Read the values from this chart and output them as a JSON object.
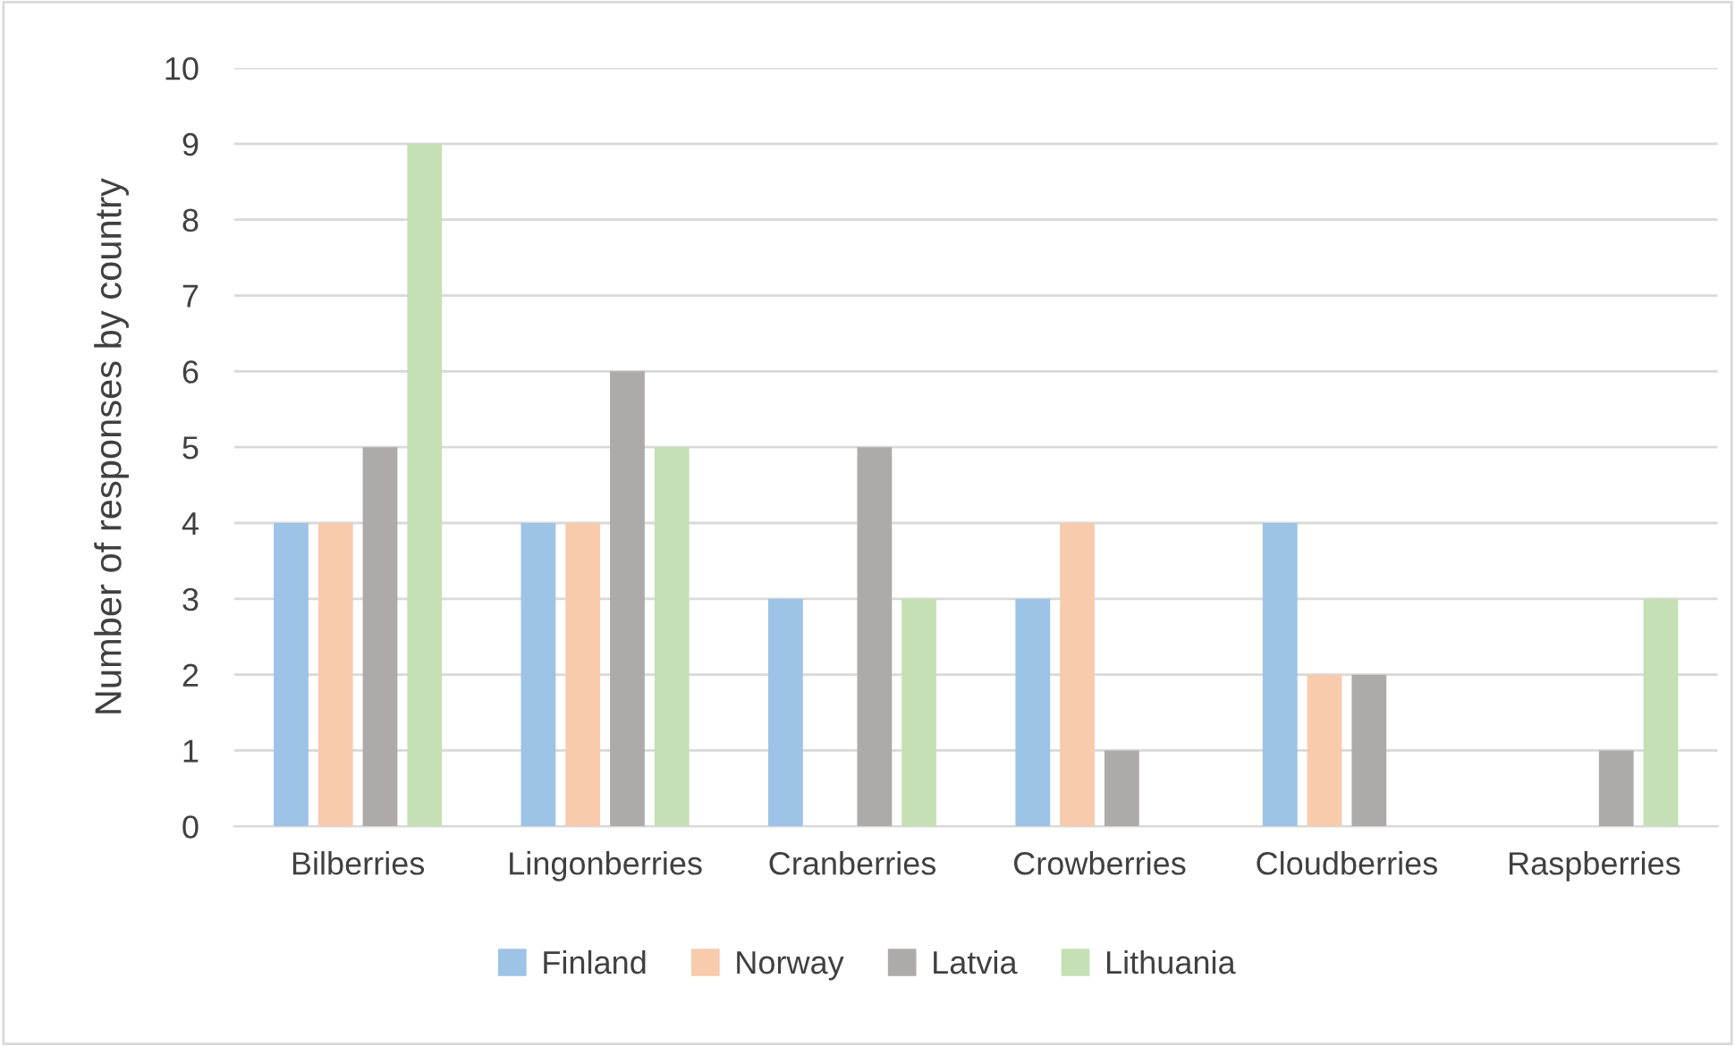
{
  "chart_data": {
    "type": "bar",
    "ylabel": "Number of responses by country",
    "categories": [
      "Bilberries",
      "Lingonberries",
      "Cranberries",
      "Crowberries",
      "Cloudberries",
      "Raspberries"
    ],
    "series": [
      {
        "name": "Finland",
        "color": "#9dc3e6",
        "values": [
          4,
          4,
          3,
          3,
          4,
          null
        ]
      },
      {
        "name": "Norway",
        "color": "#f8cbad",
        "values": [
          4,
          4,
          null,
          4,
          2,
          null
        ]
      },
      {
        "name": "Latvia",
        "color": "#aeaaaa",
        "values": [
          5,
          6,
          5,
          1,
          2,
          1
        ]
      },
      {
        "name": "Lithuania",
        "color": "#c5e0b4",
        "values": [
          9,
          5,
          3,
          null,
          null,
          3
        ]
      }
    ],
    "ylim": [
      0,
      10
    ],
    "yticks": [
      0,
      1,
      2,
      3,
      4,
      5,
      6,
      7,
      8,
      9,
      10
    ],
    "grid": "y",
    "legend": "bottom"
  }
}
